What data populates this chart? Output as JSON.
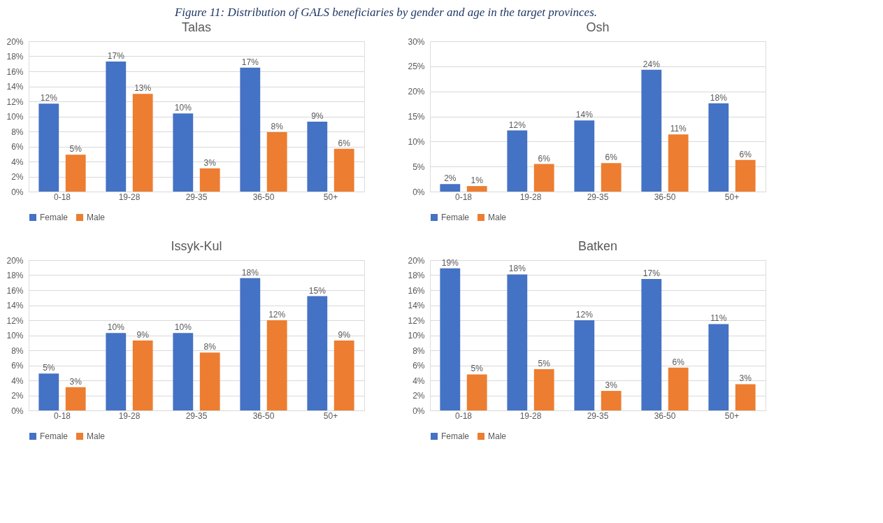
{
  "chart_data": [
    {
      "type": "bar",
      "title": "Talas",
      "annotations": [
        "Figure 11: Distribution of GALS beneficiaries by gender and age in the target provinces."
      ],
      "categories": [
        "0-18",
        "19-28",
        "29-35",
        "36-50",
        "50+"
      ],
      "series": [
        {
          "name": "Female",
          "color": "#4472c4",
          "values": [
            11.7,
            17.3,
            10.4,
            16.5,
            9.3
          ],
          "value_labels": [
            "12%",
            "17%",
            "10%",
            "17%",
            "9%"
          ]
        },
        {
          "name": "Male",
          "color": "#ed7d31",
          "values": [
            4.9,
            13.0,
            3.1,
            7.9,
            5.7
          ],
          "value_labels": [
            "5%",
            "13%",
            "3%",
            "8%",
            "6%"
          ]
        }
      ],
      "ylim": [
        0,
        20
      ],
      "yticks": [
        {
          "value": 0,
          "label": "0%"
        },
        {
          "value": 2,
          "label": "2%"
        },
        {
          "value": 4,
          "label": "4%"
        },
        {
          "value": 6,
          "label": "6%"
        },
        {
          "value": 8,
          "label": "8%"
        },
        {
          "value": 10,
          "label": "10%"
        },
        {
          "value": 12,
          "label": "12%"
        },
        {
          "value": 14,
          "label": "14%"
        },
        {
          "value": 16,
          "label": "16%"
        },
        {
          "value": 18,
          "label": "18%"
        },
        {
          "value": 20,
          "label": "20%"
        }
      ],
      "grid": "y",
      "legend": "bottom"
    },
    {
      "type": "bar",
      "title": "Osh",
      "categories": [
        "0-18",
        "19-28",
        "29-35",
        "36-50",
        "50+"
      ],
      "series": [
        {
          "name": "Female",
          "color": "#4472c4",
          "values": [
            1.5,
            12.2,
            14.2,
            24.3,
            17.6
          ],
          "value_labels": [
            "2%",
            "12%",
            "14%",
            "24%",
            "18%"
          ]
        },
        {
          "name": "Male",
          "color": "#ed7d31",
          "values": [
            1.1,
            5.5,
            5.7,
            11.4,
            6.3
          ],
          "value_labels": [
            "1%",
            "6%",
            "6%",
            "11%",
            "6%"
          ]
        }
      ],
      "ylim": [
        0,
        30
      ],
      "yticks": [
        {
          "value": 0,
          "label": "0%"
        },
        {
          "value": 5,
          "label": "5%"
        },
        {
          "value": 10,
          "label": "10%"
        },
        {
          "value": 15,
          "label": "15%"
        },
        {
          "value": 20,
          "label": "20%"
        },
        {
          "value": 25,
          "label": "25%"
        },
        {
          "value": 30,
          "label": "30%"
        }
      ],
      "grid": "y",
      "legend": "bottom"
    },
    {
      "type": "bar",
      "title": "Issyk-Kul",
      "categories": [
        "0-18",
        "19-28",
        "29-35",
        "36-50",
        "50+"
      ],
      "series": [
        {
          "name": "Female",
          "color": "#4472c4",
          "values": [
            4.9,
            10.3,
            10.3,
            17.6,
            15.2
          ],
          "value_labels": [
            "5%",
            "10%",
            "10%",
            "18%",
            "15%"
          ]
        },
        {
          "name": "Male",
          "color": "#ed7d31",
          "values": [
            3.1,
            9.3,
            7.7,
            12.0,
            9.3
          ],
          "value_labels": [
            "3%",
            "9%",
            "8%",
            "12%",
            "9%"
          ]
        }
      ],
      "ylim": [
        0,
        20
      ],
      "yticks": [
        {
          "value": 0,
          "label": "0%"
        },
        {
          "value": 2,
          "label": "2%"
        },
        {
          "value": 4,
          "label": "4%"
        },
        {
          "value": 6,
          "label": "6%"
        },
        {
          "value": 8,
          "label": "8%"
        },
        {
          "value": 10,
          "label": "10%"
        },
        {
          "value": 12,
          "label": "12%"
        },
        {
          "value": 14,
          "label": "14%"
        },
        {
          "value": 16,
          "label": "16%"
        },
        {
          "value": 18,
          "label": "18%"
        },
        {
          "value": 20,
          "label": "20%"
        }
      ],
      "grid": "y",
      "legend": "bottom"
    },
    {
      "type": "bar",
      "title": "Batken",
      "categories": [
        "0-18",
        "19-28",
        "29-35",
        "36-50",
        "50+"
      ],
      "series": [
        {
          "name": "Female",
          "color": "#4472c4",
          "values": [
            18.9,
            18.1,
            12.0,
            17.5,
            11.5
          ],
          "value_labels": [
            "19%",
            "18%",
            "12%",
            "17%",
            "11%"
          ]
        },
        {
          "name": "Male",
          "color": "#ed7d31",
          "values": [
            4.8,
            5.5,
            2.6,
            5.7,
            3.5
          ],
          "value_labels": [
            "5%",
            "5%",
            "3%",
            "6%",
            "3%"
          ]
        }
      ],
      "ylim": [
        0,
        20
      ],
      "yticks": [
        {
          "value": 0,
          "label": "0%"
        },
        {
          "value": 2,
          "label": "2%"
        },
        {
          "value": 4,
          "label": "4%"
        },
        {
          "value": 6,
          "label": "6%"
        },
        {
          "value": 8,
          "label": "8%"
        },
        {
          "value": 10,
          "label": "10%"
        },
        {
          "value": 12,
          "label": "12%"
        },
        {
          "value": 14,
          "label": "14%"
        },
        {
          "value": 16,
          "label": "16%"
        },
        {
          "value": 18,
          "label": "18%"
        },
        {
          "value": 20,
          "label": "20%"
        }
      ],
      "grid": "y",
      "legend": "bottom"
    }
  ]
}
